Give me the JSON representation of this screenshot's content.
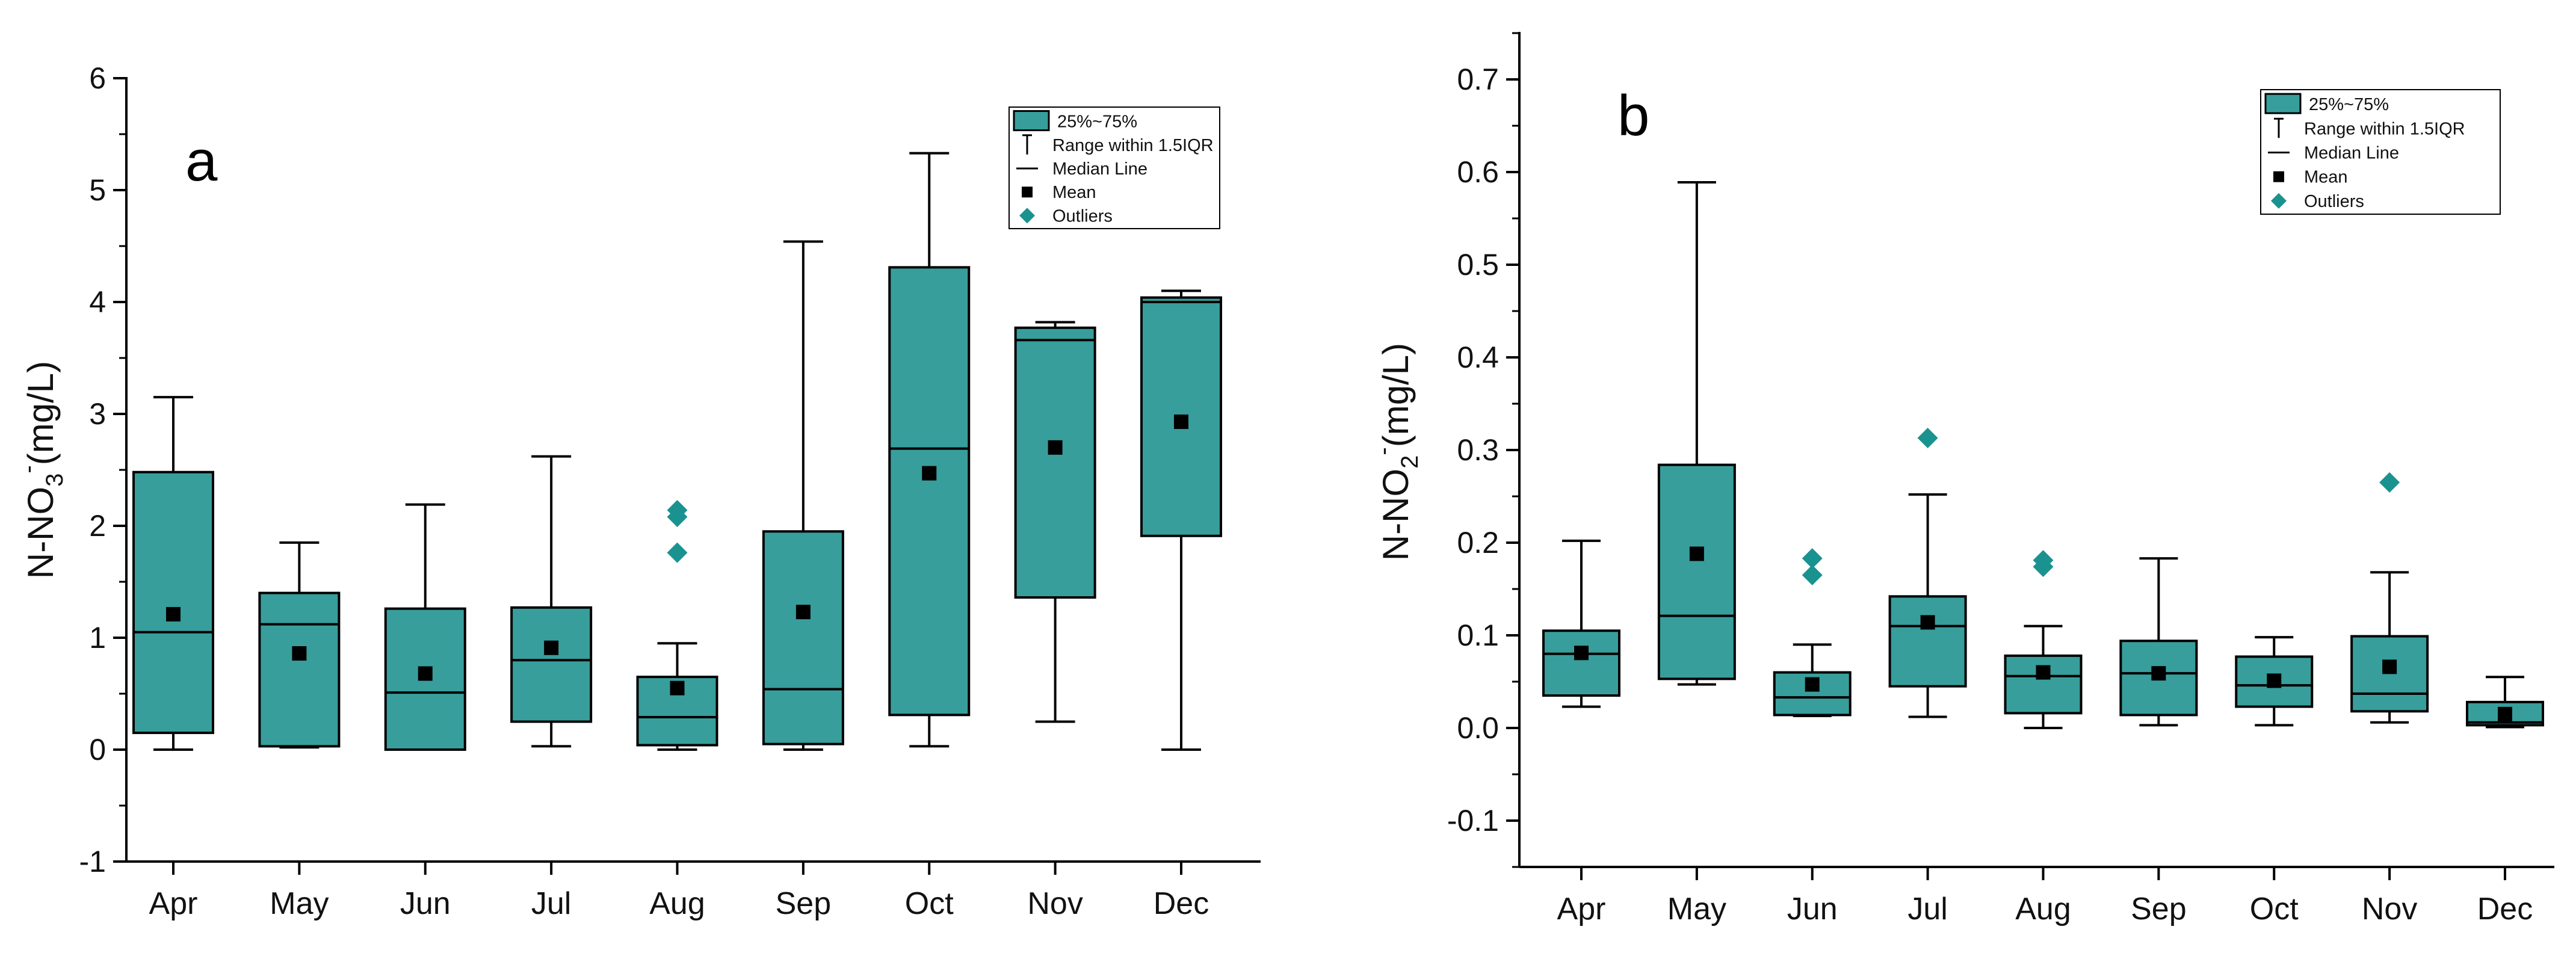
{
  "colors": {
    "box_fill": "#379e9c",
    "outlier": "#1a9390",
    "axis": "#000000",
    "background": "#ffffff"
  },
  "legend": {
    "box": "25%~75%",
    "range": "Range within 1.5IQR",
    "median": "Median Line",
    "mean": "Mean",
    "outliers": "Outliers"
  },
  "chart_data": [
    {
      "type": "box",
      "panel_label": "a",
      "ylabel": {
        "prefix": "N-NO",
        "sub": "3",
        "sup": "-",
        "suffix": "(mg/L)"
      },
      "ylim": [
        -1,
        6
      ],
      "yticks": [
        -1,
        0,
        1,
        2,
        3,
        4,
        5,
        6
      ],
      "ytick_labels": [
        "-1",
        "0",
        "1",
        "2",
        "3",
        "4",
        "5",
        "6"
      ],
      "legend_position": "top-right",
      "categories": [
        "Apr",
        "May",
        "Jun",
        "Jul",
        "Aug",
        "Sep",
        "Oct",
        "Nov",
        "Dec"
      ],
      "boxes": [
        {
          "q1": 0.15,
          "median": 1.05,
          "q3": 2.48,
          "whisker_low": 0.0,
          "whisker_high": 3.15,
          "mean": 1.21,
          "outliers": []
        },
        {
          "q1": 0.03,
          "median": 1.12,
          "q3": 1.4,
          "whisker_low": 0.02,
          "whisker_high": 1.85,
          "mean": 0.86,
          "outliers": []
        },
        {
          "q1": 0.0,
          "median": 0.51,
          "q3": 1.26,
          "whisker_low": 0.0,
          "whisker_high": 2.19,
          "mean": 0.68,
          "outliers": []
        },
        {
          "q1": 0.25,
          "median": 0.8,
          "q3": 1.27,
          "whisker_low": 0.03,
          "whisker_high": 2.62,
          "mean": 0.91,
          "outliers": []
        },
        {
          "q1": 0.04,
          "median": 0.29,
          "q3": 0.65,
          "whisker_low": 0.0,
          "whisker_high": 0.95,
          "mean": 0.55,
          "outliers": [
            1.76,
            2.08,
            2.14
          ]
        },
        {
          "q1": 0.05,
          "median": 0.54,
          "q3": 1.95,
          "whisker_low": 0.0,
          "whisker_high": 4.54,
          "mean": 1.23,
          "outliers": []
        },
        {
          "q1": 0.31,
          "median": 2.69,
          "q3": 4.31,
          "whisker_low": 0.03,
          "whisker_high": 5.33,
          "mean": 2.47,
          "outliers": []
        },
        {
          "q1": 1.36,
          "median": 3.66,
          "q3": 3.77,
          "whisker_low": 0.25,
          "whisker_high": 3.82,
          "mean": 2.7,
          "outliers": []
        },
        {
          "q1": 1.91,
          "median": 4.0,
          "q3": 4.04,
          "whisker_low": 0.0,
          "whisker_high": 4.1,
          "mean": 2.93,
          "outliers": []
        }
      ]
    },
    {
      "type": "box",
      "panel_label": "b",
      "ylabel": {
        "prefix": "N-NO",
        "sub": "2",
        "sup": "-",
        "suffix": "(mg/L)"
      },
      "ylim": [
        -0.15,
        0.75
      ],
      "yticks": [
        -0.1,
        0.0,
        0.1,
        0.2,
        0.3,
        0.4,
        0.5,
        0.6,
        0.7
      ],
      "ytick_labels": [
        "-0.1",
        "0.0",
        "0.1",
        "0.2",
        "0.3",
        "0.4",
        "0.5",
        "0.6",
        "0.7"
      ],
      "legend_position": "top-right",
      "categories": [
        "Apr",
        "May",
        "Jun",
        "Jul",
        "Aug",
        "Sep",
        "Oct",
        "Nov",
        "Dec"
      ],
      "boxes": [
        {
          "q1": 0.035,
          "median": 0.08,
          "q3": 0.105,
          "whisker_low": 0.023,
          "whisker_high": 0.202,
          "mean": 0.081,
          "outliers": []
        },
        {
          "q1": 0.053,
          "median": 0.121,
          "q3": 0.284,
          "whisker_low": 0.047,
          "whisker_high": 0.589,
          "mean": 0.188,
          "outliers": []
        },
        {
          "q1": 0.014,
          "median": 0.033,
          "q3": 0.06,
          "whisker_low": 0.013,
          "whisker_high": 0.09,
          "mean": 0.047,
          "outliers": [
            0.165,
            0.183
          ]
        },
        {
          "q1": 0.045,
          "median": 0.11,
          "q3": 0.142,
          "whisker_low": 0.012,
          "whisker_high": 0.252,
          "mean": 0.114,
          "outliers": [
            0.313
          ]
        },
        {
          "q1": 0.016,
          "median": 0.056,
          "q3": 0.078,
          "whisker_low": 0.0,
          "whisker_high": 0.11,
          "mean": 0.06,
          "outliers": [
            0.174,
            0.181
          ]
        },
        {
          "q1": 0.014,
          "median": 0.059,
          "q3": 0.094,
          "whisker_low": 0.003,
          "whisker_high": 0.183,
          "mean": 0.059,
          "outliers": []
        },
        {
          "q1": 0.023,
          "median": 0.046,
          "q3": 0.077,
          "whisker_low": 0.003,
          "whisker_high": 0.098,
          "mean": 0.051,
          "outliers": []
        },
        {
          "q1": 0.018,
          "median": 0.037,
          "q3": 0.099,
          "whisker_low": 0.006,
          "whisker_high": 0.168,
          "mean": 0.066,
          "outliers": [
            0.265
          ]
        },
        {
          "q1": 0.003,
          "median": 0.006,
          "q3": 0.028,
          "whisker_low": 0.001,
          "whisker_high": 0.055,
          "mean": 0.015,
          "outliers": []
        }
      ]
    }
  ]
}
